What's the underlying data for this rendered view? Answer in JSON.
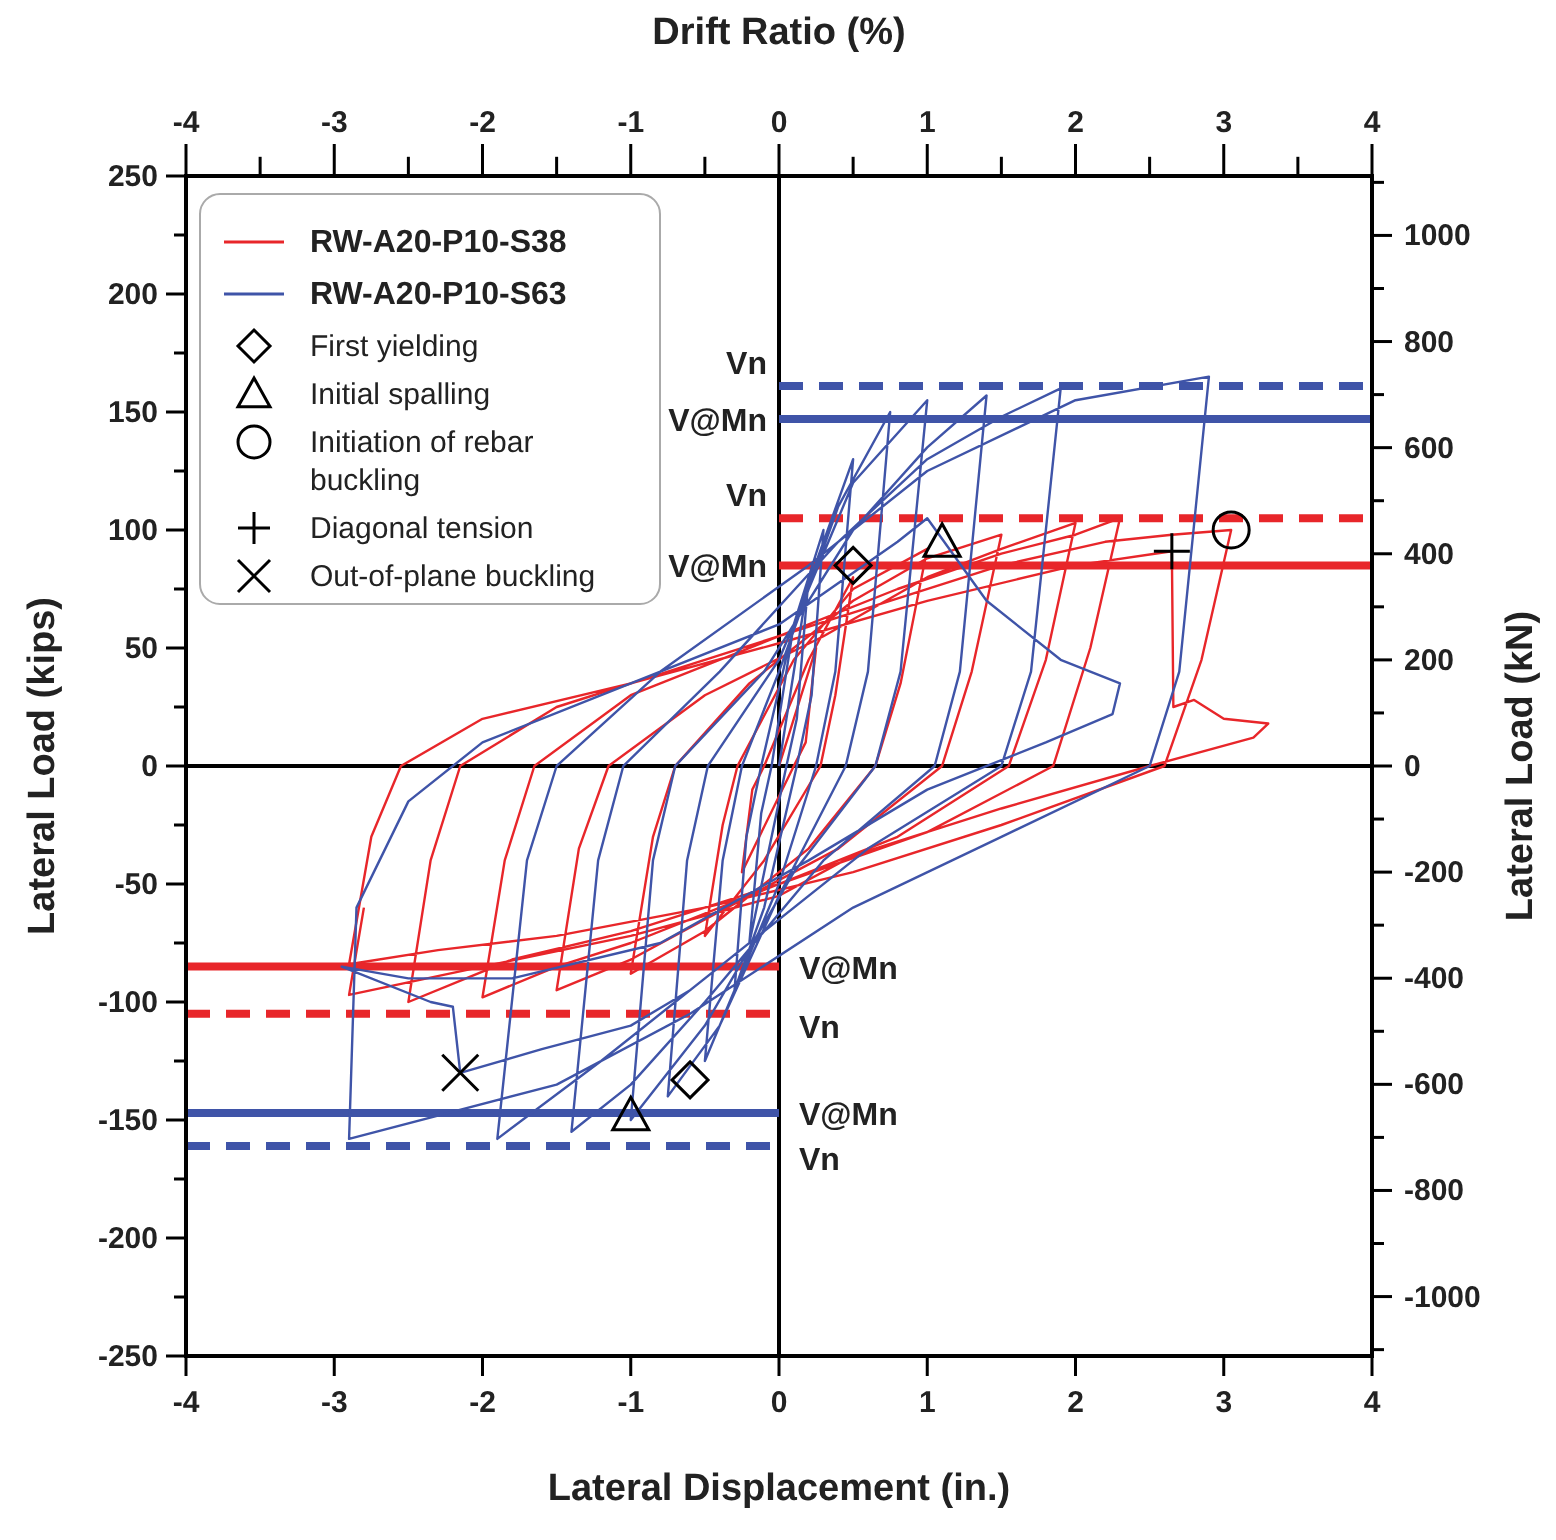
{
  "chart_data": {
    "type": "line",
    "xlabel": "Lateral Displacement (in.)",
    "ylabel": "Lateral Load (kips)",
    "y2label": "Lateral Load (kN)",
    "x2label": "Drift Ratio (%)",
    "xlim": [
      -4,
      4
    ],
    "xticks": [
      -4,
      -3,
      -2,
      -1,
      0,
      1,
      2,
      3,
      4
    ],
    "x2lim": [
      -4,
      4
    ],
    "x2ticks": [
      -4,
      {
        "value": -3.5,
        "label": null
      },
      -3,
      {
        "value": -2.5,
        "label": null
      },
      -2,
      {
        "value": -1.5,
        "label": null
      },
      -1,
      {
        "value": -0.5,
        "label": null
      },
      0,
      {
        "value": 0.5,
        "label": null
      },
      1,
      {
        "value": 1.5,
        "label": null
      },
      2,
      {
        "value": 2.5,
        "label": null
      },
      3,
      {
        "value": 3.5,
        "label": null
      },
      4
    ],
    "ylim": [
      -250,
      250
    ],
    "yticks": [
      -250,
      {
        "value": -225,
        "label": null
      },
      -200,
      {
        "value": -175,
        "label": null
      },
      -150,
      {
        "value": -125,
        "label": null
      },
      -100,
      {
        "value": -75,
        "label": null
      },
      -50,
      {
        "value": -25,
        "label": null
      },
      0,
      {
        "value": 25,
        "label": null
      },
      50,
      {
        "value": 75,
        "label": null
      },
      100,
      {
        "value": 125,
        "label": null
      },
      150,
      {
        "value": 175,
        "label": null
      },
      200,
      {
        "value": 225,
        "label": null
      },
      250
    ],
    "y2lim": [
      -1112,
      1112
    ],
    "y2ticks": [
      {
        "value": -1100,
        "label": null
      },
      -1000,
      {
        "value": -900,
        "label": null
      },
      -800,
      {
        "value": -700,
        "label": null
      },
      -600,
      {
        "value": -500,
        "label": null
      },
      -400,
      {
        "value": -300,
        "label": null
      },
      -200,
      {
        "value": -100,
        "label": null
      },
      0,
      {
        "value": 100,
        "label": null
      },
      200,
      {
        "value": 300,
        "label": null
      },
      400,
      {
        "value": 500,
        "label": null
      },
      600,
      {
        "value": 700,
        "label": null
      },
      800,
      {
        "value": 900,
        "label": null
      },
      1000,
      {
        "value": 1100,
        "label": null
      }
    ],
    "grid": false,
    "legend": "top left",
    "line_style": "solid",
    "series": [
      {
        "name": "RW-A20-P10-S38",
        "color": "#e8262a",
        "marker": "none",
        "x": [
          0,
          0.25,
          0.18,
          0.1,
          -0.25,
          -0.18,
          -0.1,
          0.2,
          0.5,
          0.38,
          0.28,
          -0.1,
          -0.5,
          -0.38,
          -0.28,
          0.1,
          0.5,
          1.0,
          0.82,
          0.65,
          0.2,
          -0.5,
          -1.0,
          -0.85,
          -0.7,
          -0.2,
          0.5,
          1.0,
          1.5,
          1.3,
          1.1,
          0.4,
          -0.5,
          -1.0,
          -1.5,
          -1.35,
          -1.15,
          -0.5,
          0.3,
          1.0,
          1.5,
          2.0,
          1.8,
          1.55,
          0.8,
          -0.2,
          -1.0,
          -1.5,
          -2.0,
          -1.85,
          -1.65,
          -1.0,
          0,
          0.8,
          1.5,
          2.0,
          2.3,
          2.1,
          1.85,
          1.0,
          0,
          -1.0,
          -1.8,
          -2.5,
          -2.35,
          -2.15,
          -1.5,
          -0.5,
          0.5,
          1.5,
          2.2,
          2.65,
          3.05,
          2.85,
          2.6,
          1.5,
          0.5,
          -0.5,
          -1.5,
          -2.3,
          -2.9,
          -2.75,
          -2.55,
          -2.0,
          -1.0,
          0,
          1.0,
          2.0,
          2.65,
          2.66,
          2.8,
          3.0,
          3.3,
          3.2,
          2.5,
          1.5,
          0.5,
          0,
          -1.0,
          -2.0,
          -2.9,
          -2.8
        ],
        "values": [
          0,
          50,
          10,
          0,
          -45,
          -10,
          0,
          45,
          80,
          30,
          0,
          -40,
          -72,
          -25,
          0,
          45,
          75,
          92,
          35,
          0,
          -35,
          -70,
          -88,
          -30,
          0,
          35,
          70,
          88,
          98,
          40,
          0,
          -35,
          -65,
          -82,
          -95,
          -35,
          0,
          30,
          55,
          80,
          92,
          103,
          45,
          0,
          -30,
          -55,
          -75,
          -85,
          -98,
          -40,
          0,
          30,
          55,
          75,
          90,
          98,
          105,
          50,
          0,
          -28,
          -50,
          -70,
          -82,
          -100,
          -40,
          0,
          25,
          45,
          65,
          85,
          95,
          98,
          100,
          45,
          0,
          -25,
          -45,
          -60,
          -72,
          -78,
          -84,
          -30,
          0,
          20,
          35,
          52,
          70,
          85,
          91,
          25,
          28,
          20,
          18,
          12,
          0,
          -18,
          -38,
          -55,
          -72,
          -85,
          -97,
          -60
        ]
      },
      {
        "name": "RW-A20-P10-S63",
        "color": "#3f54a8",
        "marker": "none",
        "x": [
          0,
          0.2,
          0.12,
          0.05,
          -0.2,
          -0.12,
          -0.05,
          0.1,
          0.3,
          0.22,
          0.12,
          -0.1,
          -0.3,
          -0.22,
          -0.12,
          0.1,
          0.5,
          0.38,
          0.25,
          0,
          -0.5,
          -0.38,
          -0.25,
          0,
          0.4,
          0.75,
          0.6,
          0.45,
          0,
          -0.4,
          -0.75,
          -0.62,
          -0.48,
          0,
          0.5,
          1.0,
          0.82,
          0.65,
          0.1,
          -0.5,
          -1.0,
          -0.85,
          -0.7,
          -0.1,
          0.5,
          1.0,
          1.4,
          1.22,
          1.05,
          0.3,
          -0.5,
          -1.0,
          -1.4,
          -1.22,
          -1.05,
          -0.4,
          0.4,
          1.0,
          1.5,
          1.9,
          1.7,
          1.5,
          0.6,
          -0.4,
          -1.2,
          -1.9,
          -1.7,
          -1.5,
          -0.8,
          0.2,
          1.0,
          2.0,
          2.9,
          2.7,
          2.5,
          1.5,
          0.5,
          -0.6,
          -1.5,
          -2.9,
          -2.85,
          -2.5,
          -2.0,
          -1.0,
          0,
          0.8,
          1.0,
          1.4,
          1.9,
          2.3,
          2.25,
          1.8,
          1.0,
          0.2,
          -0.8,
          -1.8,
          -2.5,
          -2.95,
          -2.35,
          -2.2,
          -2.15,
          -1.6,
          -1.0,
          -0.6
        ],
        "values": [
          0,
          80,
          20,
          0,
          -75,
          -20,
          0,
          60,
          100,
          30,
          0,
          -60,
          -95,
          -30,
          0,
          60,
          130,
          40,
          0,
          -50,
          -125,
          -40,
          0,
          40,
          110,
          150,
          40,
          0,
          -55,
          -110,
          -140,
          -40,
          0,
          45,
          120,
          155,
          40,
          0,
          -45,
          -110,
          -150,
          -40,
          0,
          40,
          100,
          135,
          157,
          40,
          0,
          -40,
          -100,
          -135,
          -155,
          -40,
          0,
          40,
          95,
          130,
          148,
          160,
          40,
          0,
          -35,
          -85,
          -125,
          -158,
          -40,
          0,
          40,
          85,
          125,
          155,
          165,
          40,
          0,
          -30,
          -60,
          -105,
          -135,
          -158,
          -60,
          -15,
          10,
          35,
          60,
          95,
          105,
          70,
          45,
          35,
          22,
          10,
          -10,
          -40,
          -75,
          -90,
          -90,
          -85,
          -100,
          -102,
          -130,
          -120,
          -110,
          -95
        ]
      },
      {
        "name": "First yielding",
        "color": "#000000",
        "type": "scatter",
        "marker": "diamond",
        "x": [
          0.5,
          -0.6
        ],
        "values": [
          85,
          -133
        ]
      },
      {
        "name": "Initial spalling",
        "color": "#000000",
        "type": "scatter",
        "marker": "triangle",
        "x": [
          1.1,
          -1.0
        ],
        "values": [
          95,
          -148
        ]
      },
      {
        "name": "Initiation of rebar buckling",
        "color": "#000000",
        "type": "scatter",
        "marker": "circle",
        "x": [
          3.05
        ],
        "values": [
          100
        ]
      },
      {
        "name": "Diagonal tension",
        "color": "#000000",
        "type": "scatter",
        "marker": "plus",
        "x": [
          2.65
        ],
        "values": [
          91
        ]
      },
      {
        "name": "Out-of-plane buckling",
        "color": "#000000",
        "type": "scatter",
        "marker": "cross",
        "x": [
          -2.15
        ],
        "values": [
          -130
        ]
      }
    ],
    "ref_lines": [
      {
        "axis": "x",
        "value": 0,
        "label": null,
        "color": "#000000",
        "line_style": "solid"
      },
      {
        "axis": "y",
        "value": 0,
        "label": null,
        "color": "#000000",
        "line_style": "solid"
      },
      {
        "axis": "y",
        "value": 161,
        "label": "Vn",
        "color": "#3f54a8",
        "line_style": "dashed"
      },
      {
        "axis": "y",
        "value": 147,
        "label": "V@Mn",
        "color": "#3f54a8",
        "line_style": "solid"
      },
      {
        "axis": "y",
        "value": 105,
        "label": "Vn",
        "color": "#e8262a",
        "line_style": "dashed"
      },
      {
        "axis": "y",
        "value": 85,
        "label": "V@Mn",
        "color": "#e8262a",
        "line_style": "solid"
      },
      {
        "axis": "y",
        "value": -85,
        "label": "V@Mn",
        "color": "#e8262a",
        "line_style": "solid"
      },
      {
        "axis": "y",
        "value": -105,
        "label": "Vn",
        "color": "#e8262a",
        "line_style": "dashed"
      },
      {
        "axis": "y",
        "value": -147,
        "label": "V@Mn",
        "color": "#3f54a8",
        "line_style": "solid"
      },
      {
        "axis": "y",
        "value": -161,
        "label": "Vn",
        "color": "#3f54a8",
        "line_style": "dashed"
      }
    ]
  }
}
